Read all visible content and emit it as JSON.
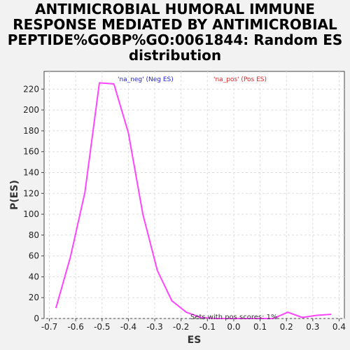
{
  "chart_data": {
    "type": "line",
    "title": "ANTIMICROBIAL HUMORAL IMMUNE\nRESPONSE MEDIATED BY ANTIMICROBIAL\nPEPTIDE%GOBP%GO:0061844: Random ES\ndistribution",
    "xlabel": "ES",
    "ylabel": "P(ES)",
    "xlim": [
      -0.72,
      0.42
    ],
    "ylim": [
      0,
      237
    ],
    "xticks": [
      "-0.7",
      "-0.6",
      "-0.5",
      "-0.4",
      "-0.3",
      "-0.2",
      "-0.1",
      "0.0",
      "0.1",
      "0.2",
      "0.3",
      "0.4"
    ],
    "yticks": [
      "0",
      "20",
      "40",
      "60",
      "80",
      "100",
      "120",
      "140",
      "160",
      "180",
      "200",
      "220"
    ],
    "grid": true,
    "series": [
      {
        "color": "#ff44ff",
        "x": [
          -0.675,
          -0.62,
          -0.565,
          -0.51,
          -0.455,
          -0.4,
          -0.345,
          -0.29,
          -0.235,
          -0.18,
          -0.125,
          -0.07,
          -0.015,
          0.04,
          0.095,
          0.15,
          0.205,
          0.26,
          0.315,
          0.37
        ],
        "y": [
          10,
          59,
          121,
          226,
          225,
          178,
          100,
          46,
          17,
          6,
          1,
          0,
          0,
          0,
          0,
          0,
          6,
          1,
          3,
          4
        ]
      }
    ],
    "legend": [
      {
        "label": "'na_neg' (Neg ES)",
        "color": "#2222cc"
      },
      {
        "label": "'na_pos' (Pos ES)",
        "color": "#dd2222"
      }
    ],
    "annotation": "Sets with pos scores: 1%"
  }
}
